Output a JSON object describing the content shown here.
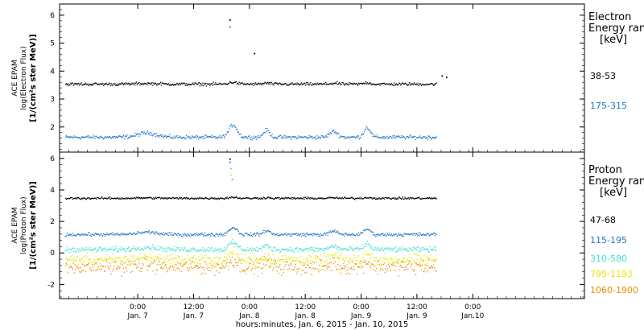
{
  "chart_data": [
    {
      "type": "scatter",
      "ylabel_lines": [
        "ACE EPAM",
        "log(Electron Flux)",
        "[1/(cm²s ster MeV)]"
      ],
      "ylim": [
        1.1,
        6.4
      ],
      "yticks": [
        2,
        3,
        4,
        5,
        6
      ],
      "legend_title_lines": [
        "Electron",
        "Energy ran",
        "[keV]"
      ],
      "series": [
        {
          "name": "38-53",
          "color": "#000000",
          "base": 3.55,
          "noise": 0.04
        },
        {
          "name": "175-315",
          "color": "#1e78c8",
          "base": 1.65,
          "noise": 0.05
        }
      ],
      "features": [
        {
          "series": 0,
          "t": 0.82,
          "v": 5.85
        },
        {
          "series": 1,
          "t": 0.82,
          "v": 5.6
        },
        {
          "series": 0,
          "t": 1.04,
          "v": 4.65
        },
        {
          "series": 0,
          "t": 2.72,
          "v": 3.85
        },
        {
          "series": 0,
          "t": 2.76,
          "v": 3.8
        }
      ]
    },
    {
      "type": "scatter",
      "ylabel_lines": [
        "ACE EPAM",
        "log(Proton Flux)",
        "[1/(cm²s ster MeV)]"
      ],
      "ylim": [
        -2.9,
        6.4
      ],
      "yticks": [
        -2,
        0,
        2,
        4,
        6
      ],
      "legend_title_lines": [
        "Proton",
        "Energy ran",
        "[keV]"
      ],
      "series": [
        {
          "name": "47-68",
          "color": "#000000",
          "base": 3.5,
          "noise": 0.05
        },
        {
          "name": "115-195",
          "color": "#1e78c8",
          "base": 1.2,
          "noise": 0.08
        },
        {
          "name": "310-580",
          "color": "#40e0d0",
          "base": 0.25,
          "noise": 0.12
        },
        {
          "name": "795-1193",
          "color": "#e6e600",
          "base": -0.4,
          "noise": 0.25
        },
        {
          "name": "1060-1900",
          "color": "#f08c00",
          "base": -0.85,
          "noise": 0.35
        }
      ],
      "features": [
        {
          "series": 0,
          "t": 0.82,
          "v": 6.0
        },
        {
          "series": 1,
          "t": 0.82,
          "v": 5.8
        },
        {
          "series": 2,
          "t": 0.83,
          "v": 5.4
        },
        {
          "series": 3,
          "t": 0.83,
          "v": 5.0
        },
        {
          "series": 4,
          "t": 0.84,
          "v": 4.7
        }
      ]
    }
  ],
  "x_axis": {
    "range_days": [
      -0.7,
      4.0
    ],
    "ticks": [
      {
        "d": 0,
        "line1": "0:00",
        "line2": "Jan. 7"
      },
      {
        "d": 0.5,
        "line1": "12:00",
        "line2": "Jan. 7"
      },
      {
        "d": 1,
        "line1": "0:00",
        "line2": "Jan. 8"
      },
      {
        "d": 1.5,
        "line1": "12:00",
        "line2": "Jan. 8"
      },
      {
        "d": 2,
        "line1": "0:00",
        "line2": "Jan. 9"
      },
      {
        "d": 2.5,
        "line1": "12:00",
        "line2": "Jan. 9"
      },
      {
        "d": 3,
        "line1": "0:00",
        "line2": "Jan.10"
      }
    ],
    "data_end_day": 2.67,
    "caption": "hours:minutes, Jan.  6, 2015 - Jan. 10, 2015"
  }
}
